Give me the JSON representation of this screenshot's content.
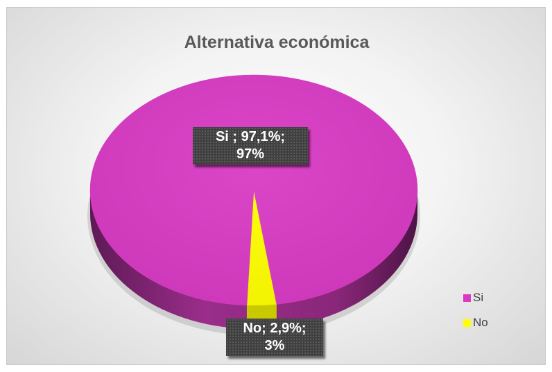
{
  "chart_data": {
    "type": "pie",
    "title": "Alternativa económica",
    "categories": [
      "Si",
      "No"
    ],
    "values": [
      97.1,
      2.9
    ],
    "percent_labels": [
      "97%",
      "3%"
    ],
    "colors": [
      "#d93ac4",
      "#ffff00"
    ],
    "data_labels": [
      {
        "line1": "Si ; 97,1%;",
        "line2": "97%"
      },
      {
        "line1": "No; 2,9%;",
        "line2": "3%"
      }
    ],
    "legend": {
      "position": "bottom-right",
      "entries": [
        {
          "label": "Si",
          "color": "#d93ac4"
        },
        {
          "label": "No",
          "color": "#ffff00"
        }
      ]
    },
    "style": "3d"
  }
}
